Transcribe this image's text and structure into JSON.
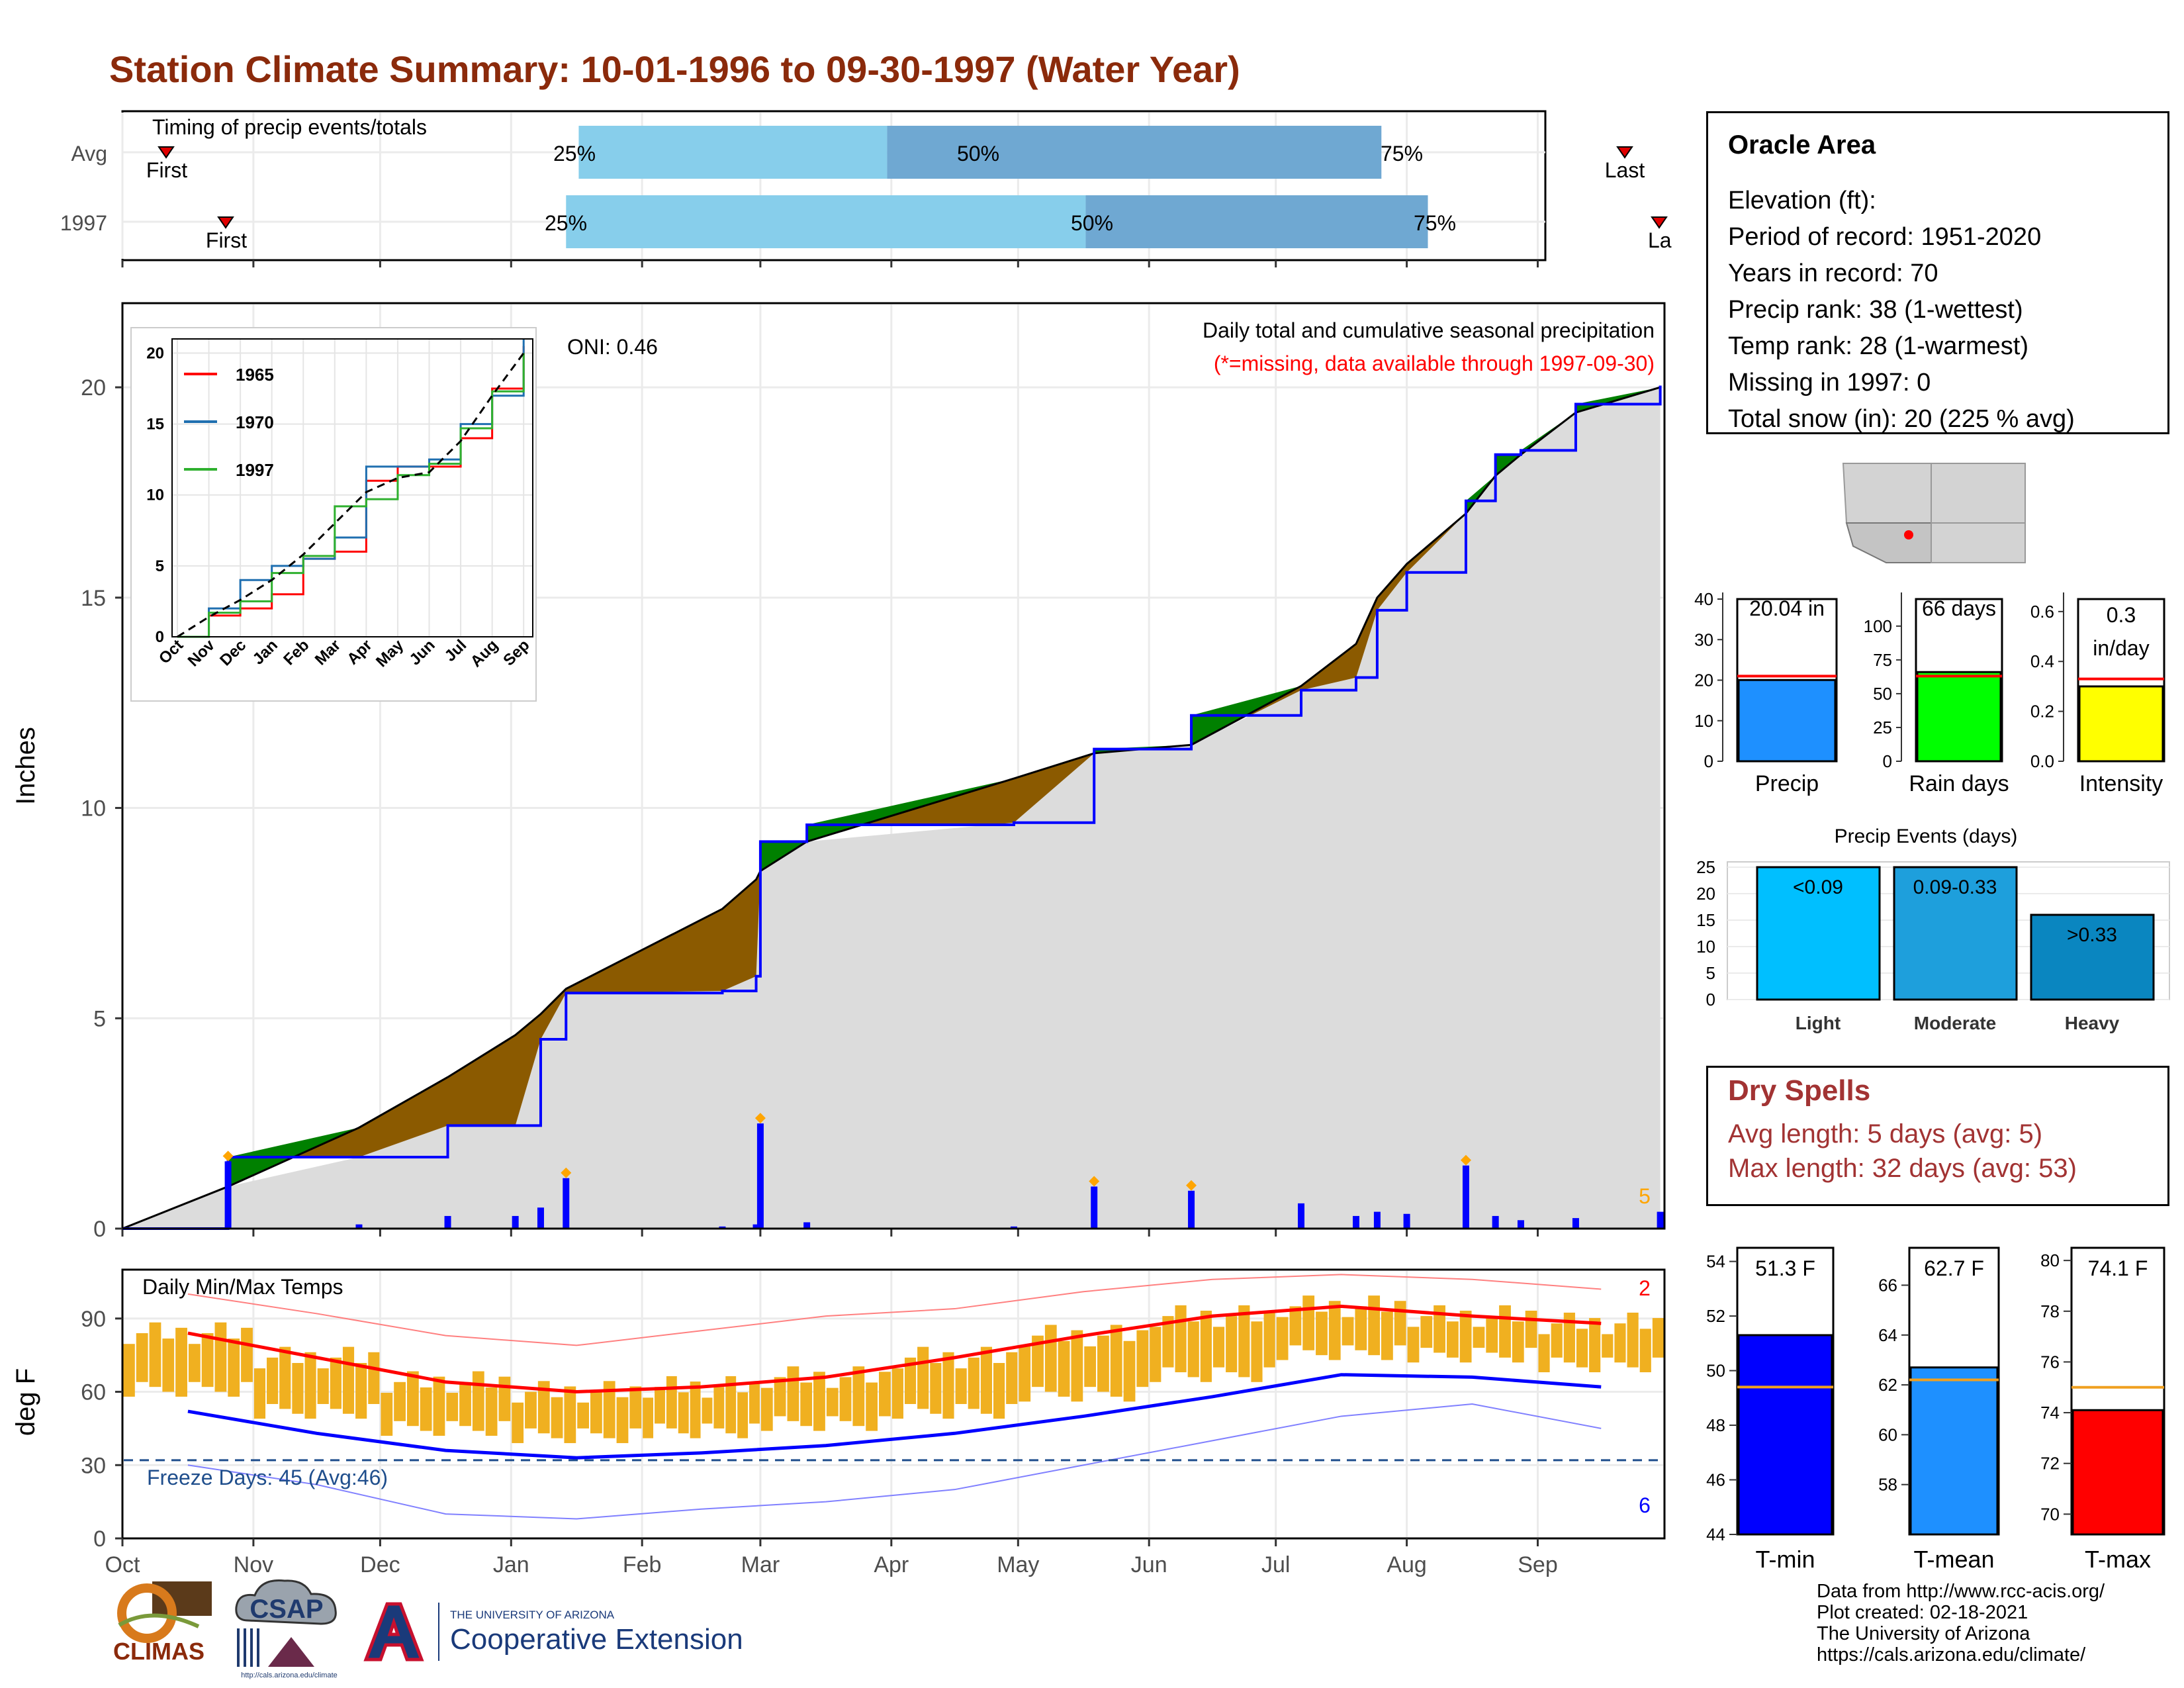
{
  "title": "Station Climate Summary: 10-01-1996 to 09-30-1997 (Water Year)",
  "timing": {
    "label": "Timing of precip events/totals",
    "rows": [
      {
        "name": "Avg",
        "p25": "25%",
        "p50": "50%",
        "p75": "75%",
        "first": "First",
        "last": "Last"
      },
      {
        "name": "1997",
        "p25": "25%",
        "p50": "50%",
        "p75": "75%",
        "first": "First",
        "last": "La"
      }
    ]
  },
  "precip_panel": {
    "ylabel": "Inches",
    "oni": "ONI: 0.46",
    "caption": "Daily total and cumulative seasonal precipitation",
    "missing_note": "(*=missing, data available through 1997-09-30)",
    "count_label": "5"
  },
  "inset": {
    "legend": [
      "1965",
      "1970",
      "1997"
    ]
  },
  "temp_panel": {
    "ylabel": "deg F",
    "label": "Daily Min/Max Temps",
    "freeze_days": "Freeze Days: 45 (Avg:46)",
    "record_high_count": "2",
    "record_low_count": "6"
  },
  "months": [
    "Oct",
    "Nov",
    "Dec",
    "Jan",
    "Feb",
    "Mar",
    "Apr",
    "May",
    "Jun",
    "Jul",
    "Aug",
    "Sep"
  ],
  "inset_months": [
    "Oct",
    "Nov",
    "Dec",
    "Jan",
    "Feb",
    "Mar",
    "Apr",
    "May",
    "Jun",
    "Jul",
    "Aug",
    "Sep"
  ],
  "station": {
    "name": "Oracle Area",
    "lines": [
      "Elevation (ft):",
      "Period of record: 1951-2020",
      "Years in record: 70",
      "Precip rank: 38 (1-wettest)",
      "Temp rank: 28 (1-warmest)",
      "Missing in 1997: 0",
      "Total snow (in): 20 (225 % avg)"
    ]
  },
  "dry_spells": {
    "title": "Dry Spells",
    "avg_length": "Avg length: 5 days (avg: 5)",
    "max_length": "Max length: 32 days (avg: 53)"
  },
  "credits": [
    "Data from http://www.rcc-acis.org/",
    "Plot created: 02-18-2021",
    "The University of Arizona",
    "https://cals.arizona.edu/climate/"
  ],
  "logos": {
    "climas": "CLIMAS",
    "csap": "CSAP",
    "csap_url": "http://cals.arizona.edu/climate",
    "ua_top": "THE UNIVERSITY OF ARIZONA",
    "ua_main": "Cooperative Extension"
  },
  "chart_data": [
    {
      "type": "bar",
      "title": "Timing of precip events/totals",
      "categories": [
        "Avg",
        "1997"
      ],
      "series": [
        {
          "name": "25%",
          "values": [
            "1997-01-17",
            "1997-01-14"
          ]
        },
        {
          "name": "50%",
          "values": [
            "1997-03-31",
            "1997-05-17"
          ]
        },
        {
          "name": "75%",
          "values": [
            "1997-07-26",
            "1997-08-06"
          ]
        },
        {
          "name": "First",
          "values": [
            "1996-10-16",
            "1996-11-07"
          ]
        },
        {
          "name": "Last",
          "values": [
            "1997-09-17",
            "1997-09-30"
          ]
        }
      ]
    },
    {
      "type": "area",
      "title": "Daily total and cumulative seasonal precipitation",
      "ylabel": "Inches",
      "ylim": [
        0,
        22
      ],
      "x": [
        "1996-10-01",
        "1996-10-26",
        "1996-11-26",
        "1996-12-17",
        "1997-01-02",
        "1997-01-08",
        "1997-01-14",
        "1997-02-20",
        "1997-02-28",
        "1997-03-01",
        "1997-03-12",
        "1997-04-30",
        "1997-05-19",
        "1997-06-11",
        "1997-07-07",
        "1997-07-20",
        "1997-07-25",
        "1997-08-01",
        "1997-08-15",
        "1997-08-22",
        "1997-08-28",
        "1997-09-10",
        "1997-09-30"
      ],
      "series": [
        {
          "name": "Average cumulative",
          "values": [
            0,
            1.0,
            2.4,
            3.6,
            4.6,
            5.1,
            5.7,
            7.6,
            8.3,
            8.5,
            9.2,
            10.7,
            11.3,
            11.5,
            12.9,
            13.9,
            15.0,
            15.8,
            17.0,
            17.9,
            18.4,
            19.4,
            20.0
          ]
        },
        {
          "name": "1997 cumulative",
          "values": [
            0,
            1.7,
            1.7,
            2.45,
            2.45,
            4.5,
            5.6,
            5.65,
            6.0,
            9.2,
            9.6,
            9.65,
            11.4,
            12.2,
            12.8,
            13.1,
            14.7,
            15.6,
            17.3,
            18.4,
            18.5,
            19.6,
            20.04
          ]
        },
        {
          "name": "Daily precip",
          "values": [
            0,
            1.6,
            0.1,
            0.3,
            0.3,
            0.5,
            1.2,
            0.05,
            0.1,
            2.5,
            0.15,
            0.05,
            1.0,
            0.9,
            0.6,
            0.3,
            0.4,
            0.35,
            1.5,
            0.3,
            0.2,
            0.25,
            0.4
          ]
        }
      ]
    },
    {
      "type": "line",
      "title": "Cumulative precipitation comparison years",
      "ylim": [
        0,
        21
      ],
      "categories": [
        "Oct",
        "Nov",
        "Dec",
        "Jan",
        "Feb",
        "Mar",
        "Apr",
        "May",
        "Jun",
        "Jul",
        "Aug",
        "Sep"
      ],
      "series": [
        {
          "name": "1965",
          "values": [
            0,
            1.5,
            2.0,
            3.0,
            5.5,
            6.0,
            11.0,
            12.0,
            12.0,
            14.0,
            17.5,
            20.5
          ]
        },
        {
          "name": "1970",
          "values": [
            0,
            2.0,
            4.0,
            5.0,
            5.5,
            7.0,
            12.0,
            12.0,
            12.5,
            15.0,
            17.0,
            21.0
          ]
        },
        {
          "name": "1997",
          "values": [
            0,
            1.7,
            2.5,
            4.5,
            5.7,
            9.2,
            9.7,
            11.4,
            12.2,
            14.7,
            17.3,
            20.0
          ]
        },
        {
          "name": "Average",
          "values": [
            0,
            1.4,
            2.6,
            4.0,
            5.8,
            8.0,
            10.2,
            11.2,
            11.6,
            13.8,
            17.0,
            20.0
          ]
        }
      ]
    },
    {
      "type": "line",
      "title": "Daily Min/Max Temps",
      "ylabel": "deg F",
      "ylim": [
        0,
        110
      ],
      "categories": [
        "Oct",
        "Nov",
        "Dec",
        "Jan",
        "Feb",
        "Mar",
        "Apr",
        "May",
        "Jun",
        "Jul",
        "Aug",
        "Sep"
      ],
      "series": [
        {
          "name": "Avg max",
          "values": [
            84,
            74,
            64,
            60,
            62,
            66,
            74,
            83,
            91,
            95,
            91,
            88
          ]
        },
        {
          "name": "Avg min",
          "values": [
            52,
            43,
            36,
            33,
            35,
            38,
            43,
            50,
            58,
            67,
            66,
            62
          ]
        },
        {
          "name": "Record high",
          "values": [
            100,
            92,
            83,
            79,
            85,
            91,
            94,
            101,
            106,
            108,
            106,
            102
          ]
        },
        {
          "name": "Record low",
          "values": [
            30,
            22,
            10,
            8,
            12,
            15,
            20,
            30,
            40,
            50,
            55,
            45
          ]
        },
        {
          "name": "Freeze line",
          "values": [
            32,
            32,
            32,
            32,
            32,
            32,
            32,
            32,
            32,
            32,
            32,
            32
          ]
        }
      ]
    },
    {
      "type": "bar",
      "categories": [
        "Precip",
        "Rain days",
        "Intensity"
      ],
      "series": [
        {
          "name": "1997",
          "values": [
            20.04,
            66,
            0.3
          ]
        },
        {
          "name": "Average",
          "values": [
            21,
            63,
            0.33
          ]
        }
      ],
      "labels": [
        "20.04 in",
        "66 days",
        "0.3",
        "in/day"
      ]
    },
    {
      "type": "bar",
      "title": "Precip Events (days)",
      "categories": [
        "Light",
        "Moderate",
        "Heavy"
      ],
      "values": [
        25,
        25,
        16
      ],
      "labels": [
        "<0.09",
        "0.09-0.33",
        ">0.33"
      ],
      "ylim": [
        0,
        26
      ]
    },
    {
      "type": "bar",
      "categories": [
        "T-min",
        "T-mean",
        "T-max"
      ],
      "series": [
        {
          "name": "1997",
          "values": [
            51.3,
            62.7,
            74.1
          ]
        },
        {
          "name": "Average",
          "values": [
            49.4,
            62.2,
            75.0
          ]
        }
      ],
      "labels": [
        "51.3 F",
        "62.7 F",
        "74.1 F"
      ]
    }
  ],
  "colors": {
    "title": "#8b2a0b",
    "avg_fill": "#dcdcdc",
    "deficit": "#8b5a00",
    "surplus": "#008000",
    "obs_line": "#0000ff",
    "event_marker": "#ffa500",
    "light_blue": "#87ceeb",
    "mid_blue": "#6fa8d2",
    "temp_bar": "#f0b020",
    "tmax_avg": "#ff0000",
    "tmin_avg": "#0000ff",
    "record": "#ff8080",
    "events_light": "#00bfff",
    "events_mod": "#1e9fdc",
    "events_heavy": "#0a86c0",
    "dry_spells": "#a23333"
  }
}
